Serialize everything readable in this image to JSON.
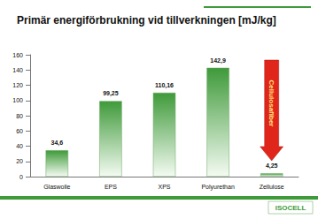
{
  "chart_data": {
    "type": "bar",
    "title": "Primär energiförbrukning vid tillverkningen [mJ/kg]",
    "categories": [
      "Glaswolle",
      "EPS",
      "XPS",
      "Polyurethan",
      "Zellulose"
    ],
    "values": [
      34.6,
      99.25,
      110.16,
      142.9,
      4.25
    ],
    "value_labels": [
      "34,6",
      "99,25",
      "110,16",
      "142,9",
      "4,25"
    ],
    "data_labels": true,
    "color": "#3f9a3a",
    "ylim": [
      0,
      160
    ],
    "yticks": [
      0,
      20,
      40,
      60,
      80,
      100,
      120,
      140,
      160
    ],
    "grid": false,
    "annotations": [
      "Cellulosafiber",
      "ISOCELL"
    ]
  }
}
